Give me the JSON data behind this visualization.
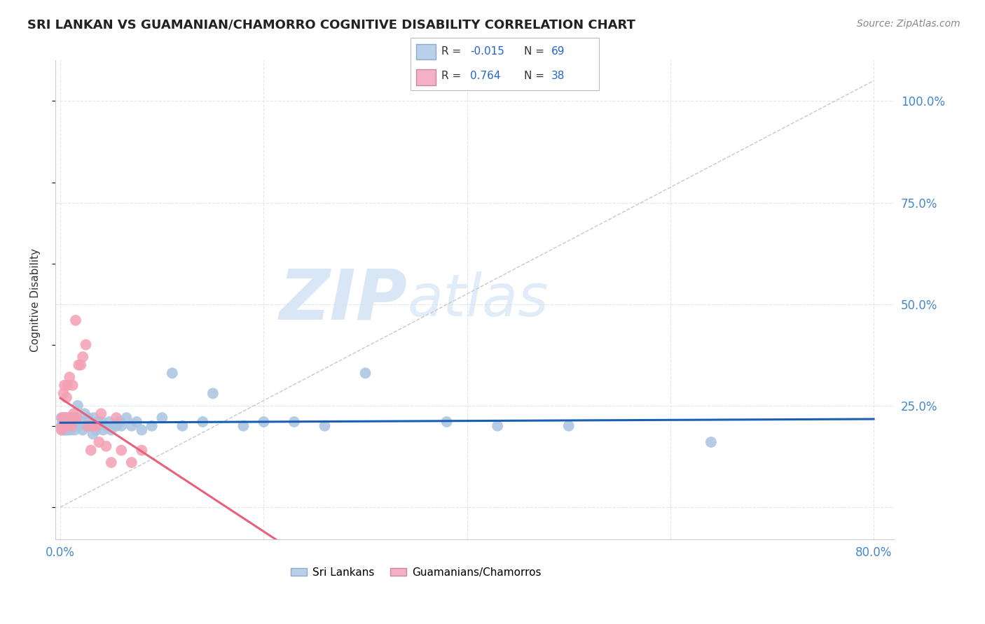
{
  "title": "SRI LANKAN VS GUAMANIAN/CHAMORRO COGNITIVE DISABILITY CORRELATION CHART",
  "source": "Source: ZipAtlas.com",
  "ylabel": "Cognitive Disability",
  "xlim": [
    -0.005,
    0.82
  ],
  "ylim": [
    -0.08,
    1.1
  ],
  "ytick_positions": [
    0.0,
    0.25,
    0.5,
    0.75,
    1.0
  ],
  "ytick_labels": [
    "",
    "25.0%",
    "50.0%",
    "75.0%",
    "100.0%"
  ],
  "sri_lankan_R": -0.015,
  "sri_lankan_N": 69,
  "guamanian_R": 0.764,
  "guamanian_N": 38,
  "sri_lankan_color": "#a8c4e0",
  "guamanian_color": "#f4a0b4",
  "sri_lankan_line_color": "#1a5fb4",
  "guamanian_line_color": "#e8607a",
  "diagonal_color": "#cccccc",
  "legend_box_sri": "#b8d0e8",
  "legend_box_gua": "#f4b0c4",
  "background_color": "#ffffff",
  "grid_color": "#dde8f0",
  "watermark_color": "#d4e4f4"
}
